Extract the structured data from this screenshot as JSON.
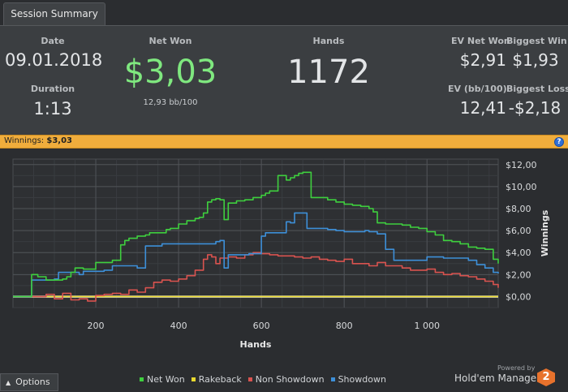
{
  "tab": {
    "label": "Session Summary"
  },
  "summary": {
    "date_label": "Date",
    "date_value": "09.01.2018",
    "duration_label": "Duration",
    "duration_value": "1:13",
    "net_won_label": "Net Won",
    "net_won_value": "$3,03",
    "bb100": "12,93 bb/100",
    "hands_label": "Hands",
    "hands_value": "1172",
    "ev_net_won_label": "EV Net Won",
    "ev_net_won_value": "$2,91",
    "biggest_win_label": "Biggest Win",
    "biggest_win_value": "$1,93",
    "ev_bb100_label": "EV (bb/100)",
    "ev_bb100_value": "12,41",
    "biggest_loss_label": "Biggest Loss",
    "biggest_loss_value": "-$2,18"
  },
  "winbar": {
    "label": "Winnings:",
    "value": "$3,03",
    "help_icon": "question-icon"
  },
  "chart_data": {
    "type": "line",
    "xlabel": "Hands",
    "ylabel": "Winnings",
    "xlim": [
      0,
      1172
    ],
    "ylim": [
      -1.0,
      12.5
    ],
    "x_ticks": [
      200,
      400,
      600,
      800,
      1000
    ],
    "x_tick_labels": [
      "200",
      "400",
      "600",
      "800",
      "1 000"
    ],
    "y_ticks": [
      0,
      2,
      4,
      6,
      8,
      10,
      12
    ],
    "y_tick_labels": [
      "$0,00",
      "$2,00",
      "$4,00",
      "$6,00",
      "$8,00",
      "$10,00",
      "$12,00"
    ],
    "grid": true,
    "series": [
      {
        "name": "Net Won",
        "color": "#3ecf3e",
        "x": [
          0,
          40,
          45,
          60,
          80,
          100,
          120,
          130,
          140,
          150,
          170,
          200,
          240,
          260,
          270,
          280,
          300,
          320,
          330,
          360,
          370,
          380,
          400,
          420,
          440,
          450,
          460,
          470,
          480,
          490,
          500,
          510,
          520,
          540,
          560,
          580,
          600,
          610,
          620,
          640,
          660,
          670,
          680,
          690,
          700,
          705,
          720,
          760,
          780,
          800,
          820,
          840,
          860,
          870,
          880,
          900,
          940,
          960,
          980,
          1000,
          1020,
          1040,
          1060,
          1080,
          1100,
          1120,
          1140,
          1160,
          1172
        ],
        "y": [
          0,
          0,
          2.0,
          1.8,
          1.5,
          1.5,
          1.6,
          1.8,
          2.2,
          2.6,
          2.5,
          3.1,
          3.3,
          4.7,
          5.1,
          5.3,
          5.5,
          5.6,
          5.8,
          5.8,
          6.1,
          6.2,
          6.6,
          6.9,
          7.1,
          7.2,
          7.6,
          8.6,
          8.8,
          8.9,
          8.8,
          7.0,
          8.5,
          8.7,
          8.8,
          9.0,
          9.2,
          9.4,
          9.6,
          11.0,
          10.6,
          10.8,
          11.0,
          11.2,
          11.3,
          11.3,
          9.0,
          8.8,
          8.6,
          8.4,
          8.3,
          8.2,
          8.0,
          7.7,
          6.7,
          6.6,
          6.5,
          6.3,
          6.2,
          5.9,
          5.6,
          5.1,
          5.0,
          4.8,
          4.5,
          4.4,
          4.3,
          3.4,
          3.0
        ]
      },
      {
        "name": "Rakeback",
        "color": "#e8d92e",
        "x": [
          0,
          1172
        ],
        "y": [
          0,
          0
        ]
      },
      {
        "name": "Non Showdown",
        "color": "#d9534f",
        "x": [
          0,
          60,
          80,
          100,
          120,
          140,
          160,
          180,
          200,
          220,
          240,
          260,
          280,
          300,
          320,
          340,
          360,
          380,
          400,
          420,
          440,
          460,
          470,
          480,
          490,
          500,
          520,
          540,
          560,
          580,
          600,
          620,
          640,
          660,
          680,
          700,
          720,
          740,
          760,
          780,
          800,
          820,
          840,
          860,
          880,
          900,
          920,
          940,
          960,
          980,
          1000,
          1020,
          1040,
          1060,
          1080,
          1100,
          1120,
          1140,
          1160,
          1172
        ],
        "y": [
          0,
          0,
          0.2,
          -0.2,
          0.3,
          -0.3,
          -0.2,
          -0.4,
          0.1,
          0.2,
          0.3,
          0.2,
          0.6,
          0.4,
          0.8,
          1.3,
          1.5,
          1.4,
          1.6,
          1.9,
          2.4,
          3.4,
          3.8,
          3.6,
          3.0,
          3.5,
          3.6,
          3.5,
          3.8,
          4.0,
          3.9,
          3.8,
          3.7,
          3.7,
          3.6,
          3.5,
          3.6,
          3.4,
          3.3,
          3.2,
          3.4,
          3.0,
          3.0,
          2.8,
          3.1,
          2.8,
          2.8,
          2.6,
          2.4,
          2.4,
          2.5,
          2.2,
          2.0,
          2.1,
          1.9,
          1.8,
          1.6,
          1.4,
          1.1,
          0.8
        ]
      },
      {
        "name": "Showdown",
        "color": "#3d8fd8",
        "x": [
          0,
          40,
          45,
          100,
          110,
          140,
          160,
          170,
          220,
          240,
          300,
          320,
          340,
          360,
          400,
          430,
          460,
          470,
          480,
          490,
          500,
          510,
          520,
          570,
          580,
          600,
          610,
          640,
          660,
          670,
          680,
          700,
          710,
          760,
          780,
          800,
          820,
          850,
          860,
          880,
          900,
          920,
          1000,
          1040,
          1080,
          1100,
          1120,
          1140,
          1160,
          1172
        ],
        "y": [
          0,
          0,
          1.5,
          1.6,
          2.2,
          2.2,
          2.0,
          2.3,
          2.4,
          2.8,
          2.6,
          4.6,
          4.6,
          4.8,
          4.8,
          4.8,
          4.8,
          4.8,
          4.8,
          5.0,
          5.1,
          2.6,
          3.8,
          3.9,
          3.9,
          5.5,
          5.8,
          5.8,
          6.8,
          6.7,
          7.6,
          7.6,
          6.2,
          6.1,
          6.0,
          5.9,
          5.9,
          6.0,
          5.9,
          5.7,
          4.3,
          3.3,
          3.6,
          3.5,
          3.5,
          3.3,
          2.9,
          2.6,
          2.2,
          2.1
        ]
      }
    ]
  },
  "legend": [
    {
      "label": "Net Won",
      "color": "#3ecf3e"
    },
    {
      "label": "Rakeback",
      "color": "#e8d92e"
    },
    {
      "label": "Non Showdown",
      "color": "#d9534f"
    },
    {
      "label": "Showdown",
      "color": "#3d8fd8"
    }
  ],
  "footer": {
    "options_label": "Options",
    "options_icon": "caret-up-icon",
    "powered_by": "Powered by",
    "brand": "Hold'em Manager",
    "brand_badge": "2"
  }
}
